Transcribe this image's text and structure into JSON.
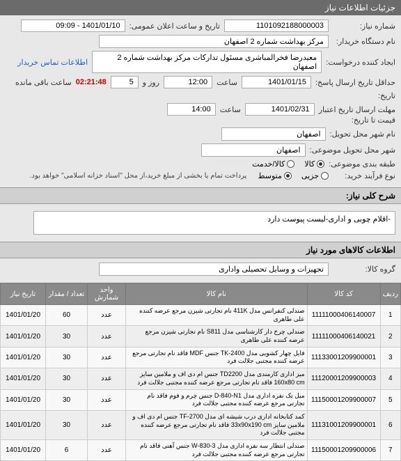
{
  "header": {
    "title": "جزئیات اطلاعات نیاز"
  },
  "form": {
    "need_number_label": "شماره نیاز:",
    "need_number": "1101092188000003",
    "announce_label": "تاریخ و ساعت اعلان عمومی:",
    "announce_value": "1401/01/10 - 09:09",
    "buyer_label": "نام دستگاه خریدار:",
    "buyer_value": "مرکز بهداشت شماره 2 اصفهان",
    "requester_label": "ایجاد کننده درخواست:",
    "requester_value": "معیدرضا فخرالمباشری مسئول تدارکات مرکز بهداشت شماره 2 اصفهان",
    "contact_link": "اطلاعات تماس خریدار",
    "deadline_label": "حداقل تاریخ ارسال پاسخ:",
    "deadline_date": "1401/01/15",
    "time_label": "ساعت",
    "deadline_time": "12:00",
    "dayhour_label": "روز و",
    "days": "5",
    "countdown": "02:21:48",
    "remaining_label": "ساعت باقی مانده",
    "history_label": "تاریخ:",
    "validity_label": "مهلت ارسال تاریخ اعتبار",
    "price_until_label": "قیمت تا تاریخ:",
    "validity_date": "1401/02/31",
    "validity_time": "14:00",
    "city_label": "نام شهر محل تحویل:",
    "city_value": "اصفهان",
    "subject_city_label": "شهر محل تحویل موضوعی:",
    "subject_city_value": "اصفهان",
    "class_label": "طبقه بندی موضوعی:",
    "goods_radio": "کالا",
    "service_radio": "کالا/خدمت",
    "process_label": "نوع فرآیند خرید:",
    "small_radio": "جزیی",
    "medium_radio": "متوسط",
    "payment_note": "پرداخت تمام یا بخشی از مبلغ خرید،از محل \"اسناد خزانه اسلامی\" خواهد بود."
  },
  "desc_section": {
    "title": "شرح کلی نیاز:",
    "text": "-اقلام چوبی و اداری-لیست پیوست دارد"
  },
  "goods_section": {
    "title": "اطلاعات کالاهای مورد نیاز",
    "group_label": "گروه کالا:",
    "group_value": "تجهیزات و وسایل تحصیلی واداری"
  },
  "table": {
    "headers": {
      "idx": "ردیف",
      "code": "کد کالا",
      "name": "نام کالا",
      "unit": "واحد شمارش",
      "qty": "تعداد / مقدار",
      "date": "تاریخ نیاز"
    },
    "rows": [
      {
        "idx": "1",
        "code": "11111000406140007",
        "name": "صندلی کنفرانس مدل 411K نام تجارتی شیزن مرجع عرضه کننده علی طاهری",
        "unit": "عدد",
        "qty": "60",
        "date": "1401/01/20"
      },
      {
        "idx": "2",
        "code": "11111000406140021",
        "name": "صندلی چرخ دار کارشناسی مدل S811 نام تجارتی شیزن مرجع عرضه کننده علی طاهری",
        "unit": "عدد",
        "qty": "30",
        "date": "1401/01/20"
      },
      {
        "idx": "3",
        "code": "11133001209900001",
        "name": "فایل چهار کشویی مدل TK-2400 جنس MDF فاقد نام تجارتی مرجع عرضه کننده مجتبی جلالت فرد",
        "unit": "عدد",
        "qty": "30",
        "date": "1401/01/20"
      },
      {
        "idx": "4",
        "code": "11120001209900003",
        "name": "میز اداری کارمندی مدل TD2200 جنس ام دی اف و ملامین سایز 160x80 cm فاقد نام تجارتی مرجع عرضه کننده مجتبی جلالت فرد",
        "unit": "عدد",
        "qty": "30",
        "date": "1401/01/20"
      },
      {
        "idx": "5",
        "code": "11150001209900007",
        "name": "میل تک نفره اداری مدل D-840-N1 جنس چرم و فوم فاقد نام تجارتی مرجع عرضه کننده مجتبی جلالت فرد",
        "unit": "عدد",
        "qty": "30",
        "date": "1401/01/20"
      },
      {
        "idx": "6",
        "code": "11131001209900001",
        "name": "کمد کتابخانه اداری درب شیشه ای مدل TF-2700 جنس ام دی اف و ملامین سایز 33x90x190 cm فاقد نام تجارتی مرجع عرضه کننده مجتبی جلالت فرد",
        "unit": "عدد",
        "qty": "30",
        "date": "1401/01/20"
      },
      {
        "idx": "7",
        "code": "11150001209900006",
        "name": "صندلی انتظار سه نفره اداری مدل W-830-3 جنس آهنی فاقد نام تجارتی مرجع عرضه کننده مجتبی جلالت فرد",
        "unit": "عدد",
        "qty": "6",
        "date": "1401/01/20"
      }
    ]
  }
}
